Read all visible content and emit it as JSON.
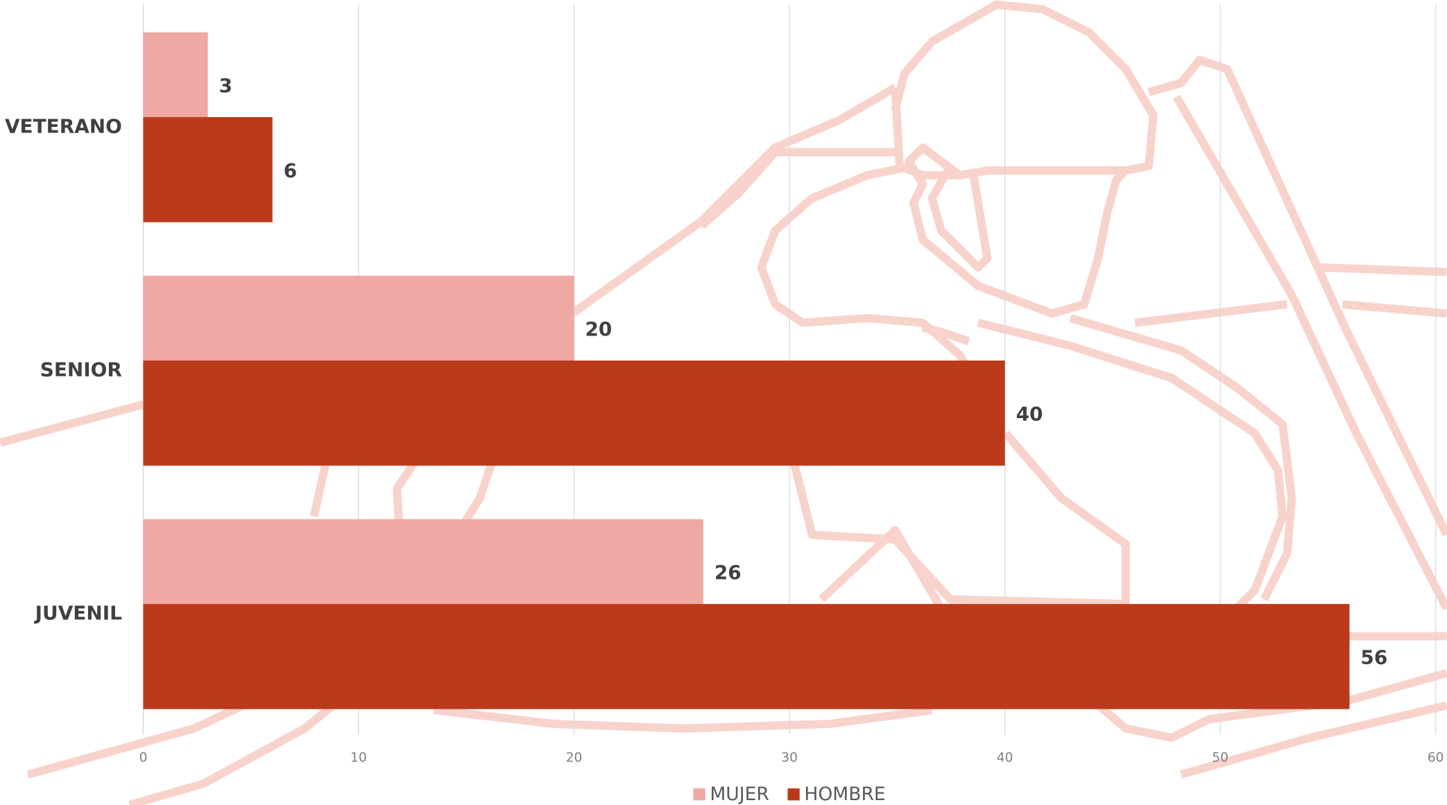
{
  "chart_data": {
    "type": "bar",
    "orientation": "horizontal",
    "categories": [
      "VETERANO",
      "SENIOR",
      "JUVENIL"
    ],
    "series": [
      {
        "name": "MUJER",
        "color": "#eea9a2",
        "values": [
          3,
          20,
          26
        ]
      },
      {
        "name": "HOMBRE",
        "color": "#bc3a1c",
        "values": [
          6,
          40,
          56
        ]
      }
    ],
    "xlim": [
      0,
      60
    ],
    "xticks": [
      0,
      10,
      20,
      30,
      40,
      50,
      60
    ],
    "grid": true,
    "legend": "bottom"
  }
}
